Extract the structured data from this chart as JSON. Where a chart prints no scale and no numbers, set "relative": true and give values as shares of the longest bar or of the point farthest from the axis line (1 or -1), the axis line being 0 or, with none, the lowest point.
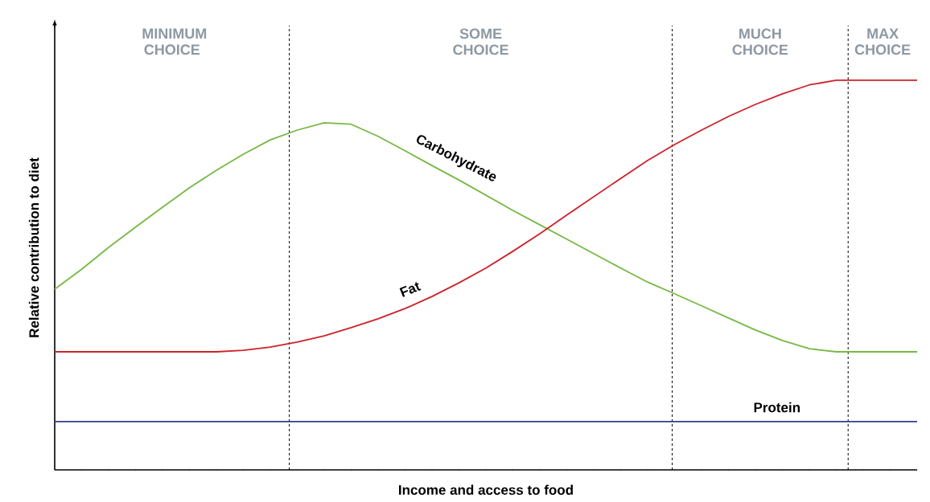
{
  "chart_data": {
    "type": "line",
    "relative": true,
    "xlabel": "Income and access to food",
    "ylabel": "Relative contribution to diet",
    "categories": [
      null,
      null,
      null,
      null,
      null,
      null,
      null,
      null,
      null,
      null,
      null,
      null,
      null,
      null,
      null,
      null,
      null,
      null,
      null,
      null,
      null,
      null,
      null,
      null,
      null,
      null,
      null,
      null,
      null,
      null,
      null,
      null,
      null
    ],
    "series": [
      {
        "name": "Carbohydrate",
        "color": "#77b843",
        "values": [
          0.464,
          0.515,
          0.571,
          0.623,
          0.674,
          0.724,
          0.769,
          0.81,
          0.847,
          0.872,
          0.891,
          0.887,
          0.856,
          0.819,
          0.781,
          0.744,
          0.705,
          0.666,
          0.629,
          0.592,
          0.555,
          0.518,
          0.482,
          0.452,
          0.421,
          0.39,
          0.359,
          0.332,
          0.311,
          0.303,
          0.303,
          0.303,
          0.303
        ]
      },
      {
        "name": "Fat",
        "color": "#cc2229",
        "values": [
          0.303,
          0.303,
          0.303,
          0.303,
          0.303,
          0.303,
          0.303,
          0.307,
          0.315,
          0.328,
          0.344,
          0.365,
          0.388,
          0.414,
          0.445,
          0.48,
          0.518,
          0.561,
          0.606,
          0.654,
          0.701,
          0.748,
          0.794,
          0.835,
          0.872,
          0.907,
          0.938,
          0.965,
          0.988,
          1,
          1,
          1,
          1
        ]
      },
      {
        "name": "Protein",
        "color": "#2e3f8f",
        "values": [
          0.124,
          0.124,
          0.124,
          0.124,
          0.124,
          0.124,
          0.124,
          0.124,
          0.124,
          0.124,
          0.124,
          0.124,
          0.124,
          0.124,
          0.124,
          0.124,
          0.124,
          0.124,
          0.124,
          0.124,
          0.124,
          0.124,
          0.124,
          0.124,
          0.124,
          0.124,
          0.124,
          0.124,
          0.124,
          0.124,
          0.124,
          0.124,
          0.124
        ]
      }
    ],
    "annotations": [
      "MINIMUM CHOICE",
      "SOME CHOICE",
      "MUCH CHOICE",
      "MAX CHOICE"
    ]
  }
}
